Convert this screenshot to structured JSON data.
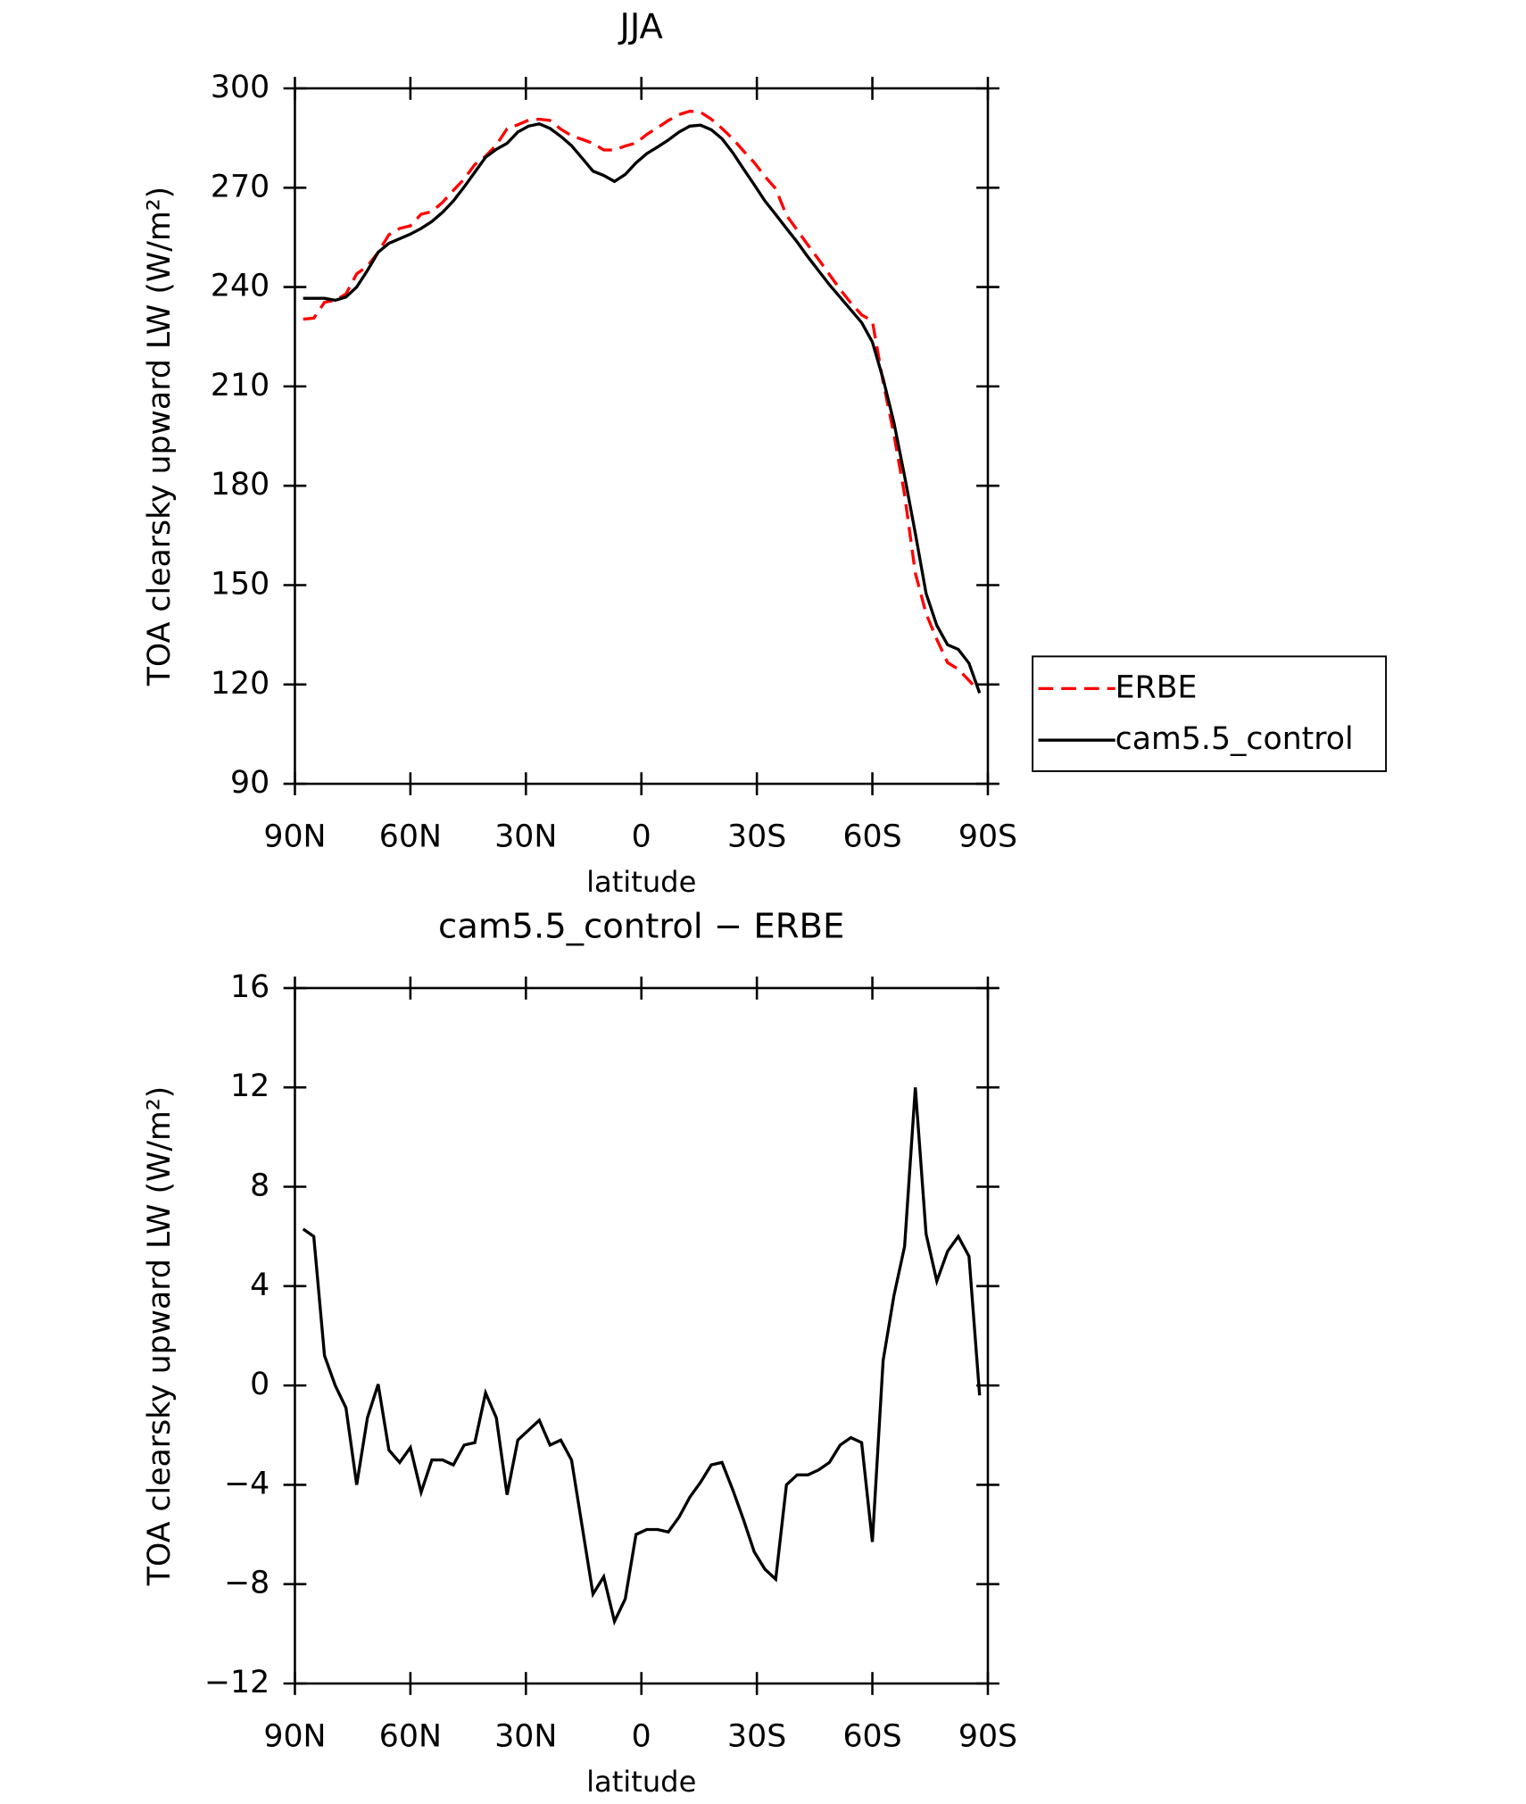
{
  "chart_data": [
    {
      "type": "line",
      "title": "JJA",
      "xlabel": "latitude",
      "ylabel": "TOA clearsky upward LW (W/m²)",
      "xlim": [
        90,
        -90
      ],
      "xticks": [
        {
          "value": 90,
          "label": "90N"
        },
        {
          "value": 60,
          "label": "60N"
        },
        {
          "value": 30,
          "label": "30N"
        },
        0,
        {
          "value": -30,
          "label": "30S"
        },
        {
          "value": -60,
          "label": "60S"
        },
        {
          "value": -90,
          "label": "90S"
        }
      ],
      "ylim": [
        90,
        300
      ],
      "yticks": [
        90,
        120,
        150,
        180,
        210,
        240,
        270,
        300
      ],
      "legend": "right",
      "x": [
        87.86,
        85.1,
        82.31,
        79.53,
        76.74,
        73.95,
        71.16,
        68.37,
        65.58,
        62.79,
        60,
        57.21,
        54.42,
        51.63,
        48.84,
        46.05,
        43.26,
        40.47,
        37.68,
        34.89,
        32.1,
        29.31,
        26.52,
        23.73,
        20.94,
        18.15,
        15.36,
        12.57,
        9.78,
        6.99,
        4.2,
        1.4,
        -1.4,
        -4.2,
        -6.99,
        -9.78,
        -12.57,
        -15.36,
        -18.15,
        -20.94,
        -23.73,
        -26.52,
        -29.31,
        -32.1,
        -34.89,
        -37.68,
        -40.47,
        -43.26,
        -46.05,
        -48.84,
        -51.63,
        -54.42,
        -57.21,
        -60,
        -62.79,
        -65.58,
        -68.37,
        -71.16,
        -73.95,
        -76.74,
        -79.53,
        -82.31,
        -85.1,
        -87.86
      ],
      "series": [
        {
          "name": "ERBE",
          "color": "#ff0000",
          "linestyle": "dashed",
          "values": [
            230.3,
            230.6,
            235.4,
            236,
            237.9,
            244,
            246.3,
            250.5,
            255.8,
            257.7,
            258.5,
            262,
            262.8,
            265.6,
            269.2,
            272.6,
            277,
            279.5,
            282.9,
            287.8,
            289,
            290.4,
            290.7,
            290.3,
            287.7,
            285.7,
            284.6,
            283.4,
            281.4,
            281.4,
            282.6,
            283.5,
            286.1,
            288.1,
            290.3,
            292.1,
            293.1,
            292.8,
            290.7,
            287.9,
            284.8,
            281.1,
            277.6,
            273.4,
            269.7,
            261.7,
            257.2,
            252.7,
            248.3,
            243.8,
            239.3,
            235.2,
            231.6,
            229.7,
            211.3,
            195.6,
            177.3,
            153.6,
            141.4,
            133.6,
            126.6,
            124.6,
            121.2,
            117.8
          ]
        },
        {
          "name": "cam5.5_control",
          "color": "#000000",
          "linestyle": "solid",
          "values": [
            236.6,
            236.6,
            236.6,
            236,
            237,
            240,
            245,
            250.5,
            253.2,
            254.6,
            256,
            257.7,
            259.8,
            262.6,
            266,
            270.2,
            274.7,
            279.2,
            281.6,
            283.4,
            286.8,
            288.6,
            289.3,
            287.9,
            285.5,
            282.7,
            278.9,
            275,
            273.7,
            271.9,
            274,
            277.5,
            280.3,
            282.3,
            284.4,
            286.8,
            288.6,
            288.9,
            287.5,
            284.8,
            280.6,
            275.7,
            270.9,
            266,
            261.9,
            257.7,
            253.6,
            249.1,
            244.9,
            240.7,
            236.9,
            233.1,
            229.3,
            223.4,
            212.3,
            199.2,
            182.9,
            165.6,
            147.5,
            137.8,
            132,
            130.6,
            126.4,
            117.4
          ]
        }
      ]
    },
    {
      "type": "line",
      "title": "cam5.5_control − ERBE",
      "xlabel": "latitude",
      "ylabel": "TOA clearsky upward LW (W/m²)",
      "xlim": [
        90,
        -90
      ],
      "xticks": [
        {
          "value": 90,
          "label": "90N"
        },
        {
          "value": 60,
          "label": "60N"
        },
        {
          "value": 30,
          "label": "30N"
        },
        0,
        {
          "value": -30,
          "label": "30S"
        },
        {
          "value": -60,
          "label": "60S"
        },
        {
          "value": -90,
          "label": "90S"
        }
      ],
      "ylim": [
        -12,
        16
      ],
      "yticks": [
        {
          "value": -12,
          "label": "−12"
        },
        {
          "value": -8,
          "label": "−8"
        },
        {
          "value": -4,
          "label": "−4"
        },
        0,
        4,
        8,
        12,
        16
      ],
      "x": [
        87.86,
        85.1,
        82.31,
        79.53,
        76.74,
        73.95,
        71.16,
        68.37,
        65.58,
        62.79,
        60,
        57.21,
        54.42,
        51.63,
        48.84,
        46.05,
        43.26,
        40.47,
        37.68,
        34.89,
        32.1,
        29.31,
        26.52,
        23.73,
        20.94,
        18.15,
        15.36,
        12.57,
        9.78,
        6.99,
        4.2,
        1.4,
        -1.4,
        -4.2,
        -6.99,
        -9.78,
        -12.57,
        -15.36,
        -18.15,
        -20.94,
        -23.73,
        -26.52,
        -29.31,
        -32.1,
        -34.89,
        -37.68,
        -40.47,
        -43.26,
        -46.05,
        -48.84,
        -51.63,
        -54.42,
        -57.21,
        -60,
        -62.79,
        -65.58,
        -68.37,
        -71.16,
        -73.95,
        -76.74,
        -79.53,
        -82.31,
        -85.1,
        -87.86
      ],
      "color": "#000000",
      "values": [
        6.3,
        6.0,
        1.2,
        0,
        -0.9,
        -4.0,
        -1.3,
        0.05,
        -2.6,
        -3.1,
        -2.5,
        -4.3,
        -3.0,
        -3.0,
        -3.2,
        -2.4,
        -2.3,
        -0.3,
        -1.3,
        -4.4,
        -2.2,
        -1.8,
        -1.4,
        -2.4,
        -2.2,
        -3.0,
        -5.7,
        -8.4,
        -7.7,
        -9.5,
        -8.6,
        -6.0,
        -5.8,
        -5.8,
        -5.9,
        -5.3,
        -4.5,
        -3.9,
        -3.2,
        -3.1,
        -4.2,
        -5.4,
        -6.7,
        -7.4,
        -7.8,
        -4.0,
        -3.6,
        -3.6,
        -3.4,
        -3.1,
        -2.4,
        -2.1,
        -2.3,
        -6.3,
        1.0,
        3.6,
        5.6,
        12.0,
        6.1,
        4.2,
        5.4,
        6.0,
        5.2,
        -0.4
      ]
    }
  ]
}
